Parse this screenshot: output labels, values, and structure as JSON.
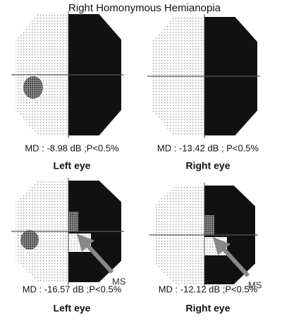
{
  "title": "Right Homonymous Hemianopia",
  "panels": [
    {
      "md": "MD : -8.98 dB  ;P<0.5%",
      "eye": "Left eye"
    },
    {
      "md": "MD : -13.42 dB ; P<0.5%",
      "eye": "Right eye"
    },
    {
      "md": "MD : -16.57 dB  ;P<0.5%",
      "eye": "Left eye",
      "annotation": "MS"
    },
    {
      "md": "MD : -12.12 dB  ;P<0.5%",
      "eye": "Right eye",
      "annotation": "MS"
    }
  ]
}
